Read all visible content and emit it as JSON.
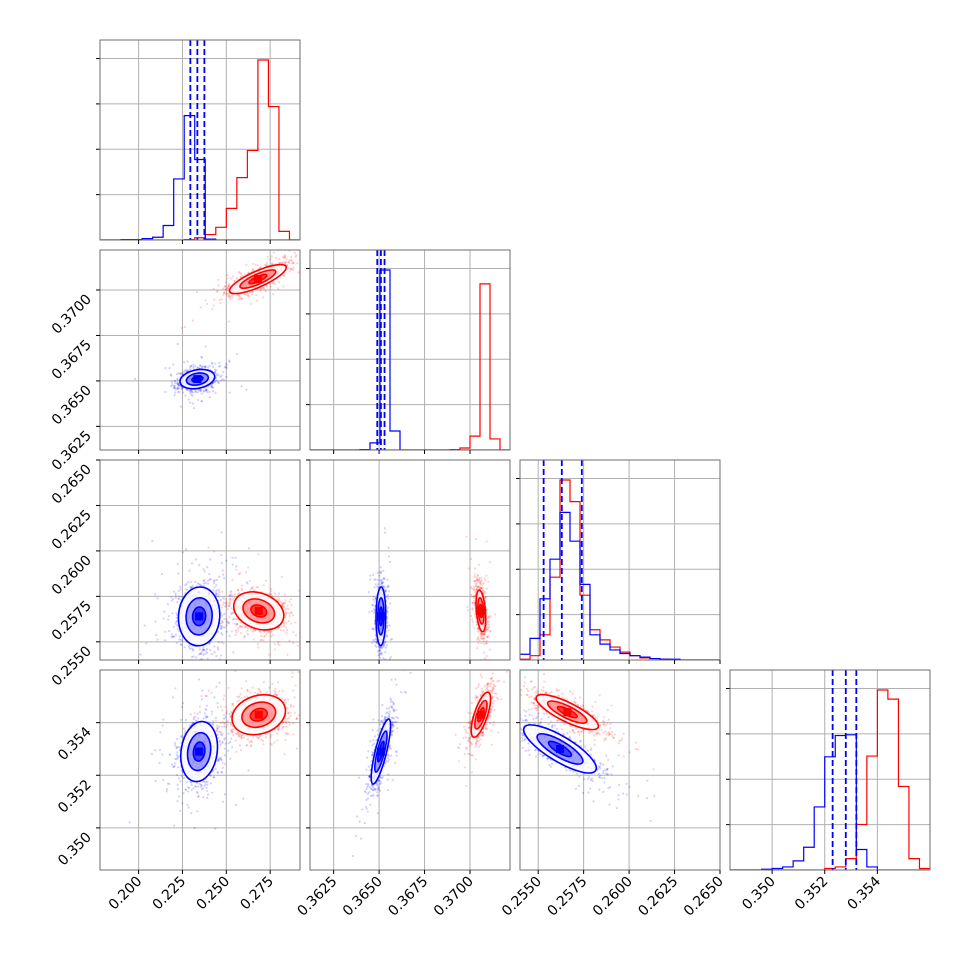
{
  "chart_data": {
    "type": "scatter",
    "title": "",
    "grid": true,
    "legend": "none",
    "series": [
      {
        "color": "#0000ff"
      },
      {
        "color": "#ff0000"
      }
    ],
    "parameters": [
      {
        "range": [
          0.178,
          0.292
        ],
        "ticks": [
          0.2,
          0.225,
          0.25,
          0.275
        ],
        "tick_labels": [
          "0.200",
          "0.225",
          "0.250",
          "0.275"
        ],
        "quantiles": [
          0.2295,
          0.2335,
          0.2375
        ]
      },
      {
        "range": [
          0.3612,
          0.3722
        ],
        "ticks": [
          0.3625,
          0.365,
          0.3675,
          0.37
        ],
        "tick_labels": [
          "0.3625",
          "0.3650",
          "0.3675",
          "0.3700"
        ],
        "quantiles": [
          0.3649,
          0.3651,
          0.3653
        ]
      },
      {
        "range": [
          0.254,
          0.265
        ],
        "ticks": [
          0.255,
          0.2575,
          0.26,
          0.2625,
          0.265
        ],
        "tick_labels": [
          "0.2550",
          "0.2575",
          "0.2600",
          "0.2625",
          "0.2650"
        ],
        "quantiles": [
          0.2553,
          0.2563,
          0.2574
        ]
      },
      {
        "range": [
          0.3484,
          0.356
        ],
        "ticks": [
          0.35,
          0.352,
          0.354
        ],
        "tick_labels": [
          "0.350",
          "0.352",
          "0.354"
        ],
        "quantiles": [
          0.3523,
          0.3528,
          0.3532
        ]
      }
    ],
    "histograms": [
      {
        "dim": 0,
        "bins": [
          0.178,
          0.184,
          0.19,
          0.196,
          0.202,
          0.208,
          0.214,
          0.22,
          0.226,
          0.232,
          0.238,
          0.244,
          0.25,
          0.256,
          0.262,
          0.268,
          0.274,
          0.28,
          0.286,
          0.292
        ],
        "blue": [
          0,
          0,
          1,
          1,
          3,
          6,
          32,
          135,
          275,
          178,
          2,
          0,
          0,
          0,
          0,
          0,
          0,
          0,
          0
        ],
        "red": [
          0,
          0,
          0,
          0,
          0,
          0,
          0,
          0,
          1,
          5,
          12,
          28,
          70,
          138,
          198,
          398,
          295,
          19,
          0
        ]
      },
      {
        "dim": 1,
        "bins": [
          0.3612,
          0.36175,
          0.3623,
          0.36285,
          0.3634,
          0.36395,
          0.3645,
          0.36505,
          0.3656,
          0.36615,
          0.3667,
          0.36725,
          0.3678,
          0.36835,
          0.3689,
          0.36945,
          0.37,
          0.37055,
          0.3711,
          0.37165,
          0.3722
        ],
        "blue": [
          0,
          0,
          0,
          0,
          0,
          1,
          18,
          455,
          48,
          0,
          0,
          0,
          0,
          0,
          0,
          0,
          0,
          0,
          0,
          0
        ],
        "red": [
          0,
          0,
          0,
          0,
          0,
          0,
          0,
          0,
          0,
          0,
          0,
          0,
          0,
          0,
          1,
          5,
          35,
          420,
          28,
          0
        ]
      },
      {
        "dim": 2,
        "bins": [
          0.254,
          0.25455,
          0.2551,
          0.25565,
          0.2562,
          0.25675,
          0.2573,
          0.25785,
          0.2584,
          0.25895,
          0.2595,
          0.26005,
          0.2606,
          0.26115,
          0.2617,
          0.26225,
          0.2628,
          0.26335,
          0.2639,
          0.26445,
          0.265
        ],
        "blue": [
          8,
          30,
          85,
          140,
          205,
          165,
          105,
          35,
          22,
          14,
          9,
          6,
          4,
          2,
          1,
          1,
          0,
          0,
          0,
          0
        ],
        "red": [
          1,
          6,
          35,
          115,
          250,
          220,
          90,
          42,
          28,
          18,
          11,
          6,
          3,
          2,
          1,
          0,
          0,
          0,
          0,
          0
        ]
      },
      {
        "dim": 3,
        "bins": [
          0.3484,
          0.3488,
          0.3492,
          0.3496,
          0.35,
          0.3504,
          0.3508,
          0.3512,
          0.3516,
          0.352,
          0.3524,
          0.3528,
          0.3532,
          0.3536,
          0.354,
          0.3544,
          0.3548,
          0.3552,
          0.3556,
          0.356
        ],
        "blue": [
          0,
          0,
          0,
          1,
          2,
          4,
          12,
          30,
          83,
          149,
          177,
          178,
          27,
          4,
          0,
          0,
          0,
          0,
          0
        ],
        "red": [
          0,
          0,
          0,
          0,
          0,
          0,
          0,
          0,
          0,
          2,
          4,
          15,
          60,
          150,
          237,
          225,
          110,
          15,
          2
        ]
      }
    ],
    "pairs": [
      {
        "x_dim": 0,
        "y_dim": 1,
        "blue": {
          "mean": [
            0.2335,
            0.3651
          ],
          "sd": [
            0.0052,
            0.00028
          ],
          "corr": 0.25
        },
        "red": {
          "mean": [
            0.268,
            0.3706
          ],
          "sd": [
            0.0085,
            0.00042
          ],
          "corr": 0.8
        }
      },
      {
        "x_dim": 0,
        "y_dim": 2,
        "blue": {
          "mean": [
            0.2345,
            0.2564
          ],
          "sd": [
            0.0062,
            0.00085
          ],
          "corr": 0.05
        },
        "red": {
          "mean": [
            0.2685,
            0.2567
          ],
          "sd": [
            0.0075,
            0.00055
          ],
          "corr": -0.25
        }
      },
      {
        "x_dim": 1,
        "y_dim": 2,
        "blue": {
          "mean": [
            0.3651,
            0.2564
          ],
          "sd": [
            0.00014,
            0.00085
          ],
          "corr": 0.05
        },
        "red": {
          "mean": [
            0.3706,
            0.2567
          ],
          "sd": [
            0.00014,
            0.0006
          ],
          "corr": -0.35
        }
      },
      {
        "x_dim": 0,
        "y_dim": 3,
        "blue": {
          "mean": [
            0.2345,
            0.3529
          ],
          "sd": [
            0.0055,
            0.0006
          ],
          "corr": 0.15
        },
        "red": {
          "mean": [
            0.2685,
            0.3543
          ],
          "sd": [
            0.008,
            0.0004
          ],
          "corr": 0.2
        }
      },
      {
        "x_dim": 1,
        "y_dim": 3,
        "blue": {
          "mean": [
            0.3651,
            0.3529
          ],
          "sd": [
            0.00028,
            0.00065
          ],
          "corr": 0.8
        },
        "red": {
          "mean": [
            0.3706,
            0.3543
          ],
          "sd": [
            0.00028,
            0.00045
          ],
          "corr": 0.7
        }
      },
      {
        "x_dim": 2,
        "y_dim": 3,
        "blue": {
          "mean": [
            0.2562,
            0.353
          ],
          "sd": [
            0.00105,
            0.00048
          ],
          "corr": -0.8
        },
        "red": {
          "mean": [
            0.2566,
            0.3544
          ],
          "sd": [
            0.0009,
            0.00035
          ],
          "corr": -0.8
        }
      }
    ]
  }
}
